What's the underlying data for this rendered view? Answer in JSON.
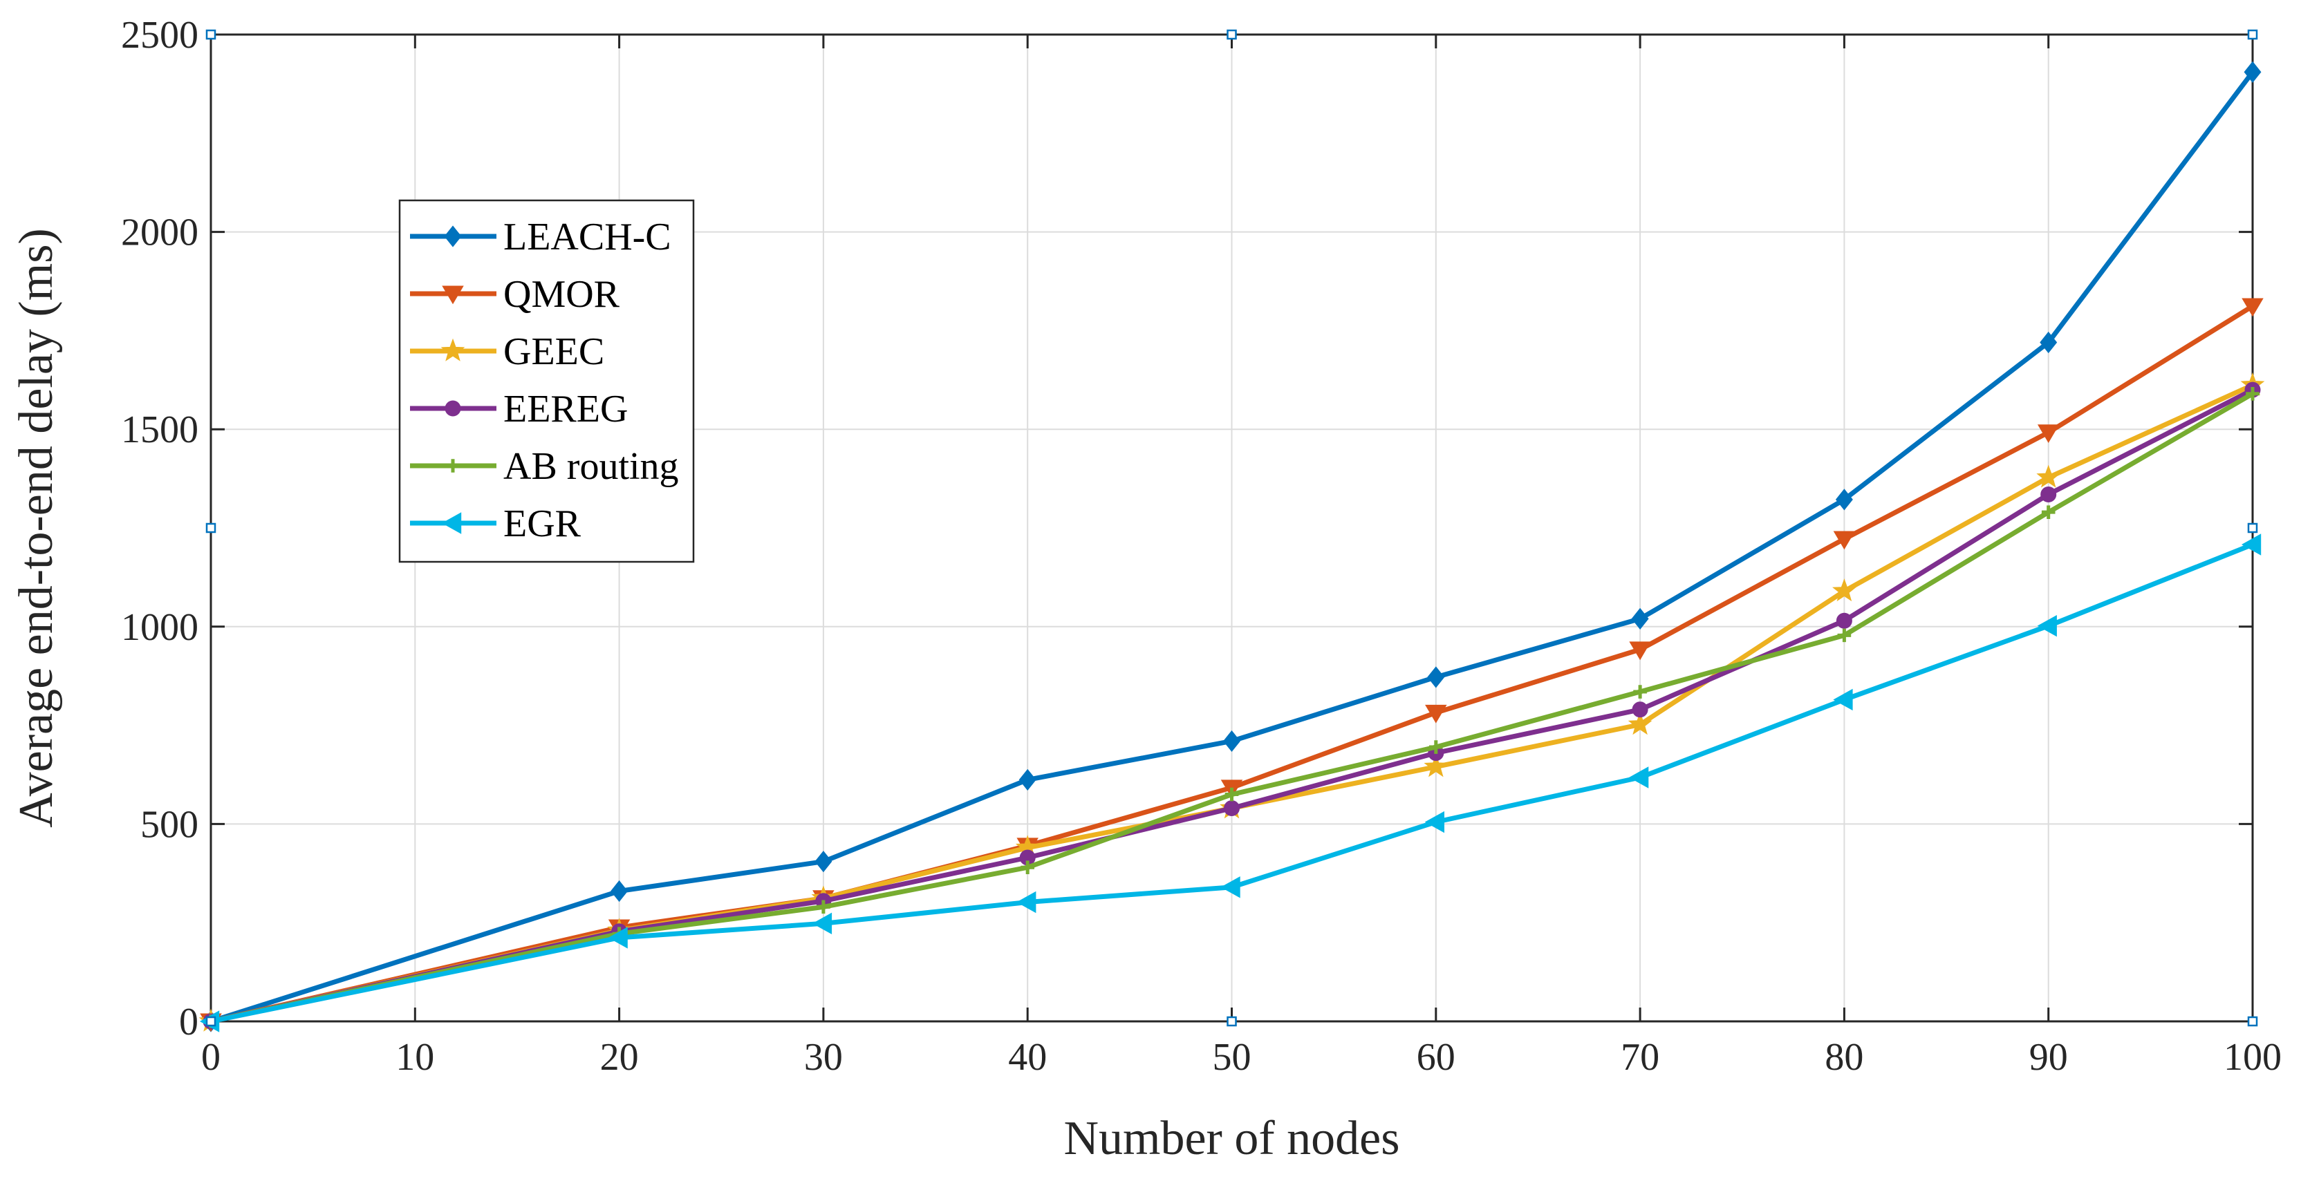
{
  "chart_data": {
    "type": "line",
    "title": "",
    "xlabel": "Number of nodes",
    "ylabel": "Average end-to-end delay (ms)",
    "xlim": [
      0,
      100
    ],
    "ylim": [
      0,
      2500
    ],
    "x_ticks": [
      "0",
      "10",
      "20",
      "30",
      "40",
      "50",
      "60",
      "70",
      "80",
      "90",
      "100"
    ],
    "y_ticks": [
      "0",
      "500",
      "1000",
      "1500",
      "2000",
      "2500"
    ],
    "grid": true,
    "legend_position": "upper-left",
    "x": [
      0,
      20,
      30,
      40,
      50,
      60,
      70,
      80,
      90,
      100
    ],
    "series": [
      {
        "name": "LEACH-C",
        "color": "#0072BD",
        "marker": "diamond",
        "values": [
          0,
          330,
          405,
          612,
          710,
          872,
          1020,
          1322,
          1720,
          2405
        ]
      },
      {
        "name": "QMOR",
        "color": "#D95319",
        "marker": "triangle-down",
        "values": [
          0,
          238,
          312,
          445,
          592,
          782,
          942,
          1222,
          1492,
          1812
        ]
      },
      {
        "name": "GEEC",
        "color": "#EDB120",
        "marker": "star",
        "values": [
          0,
          230,
          312,
          440,
          540,
          645,
          752,
          1090,
          1378,
          1612
        ]
      },
      {
        "name": "EEREG",
        "color": "#7E2F8E",
        "marker": "circle",
        "values": [
          0,
          228,
          305,
          415,
          540,
          680,
          790,
          1015,
          1335,
          1600
        ]
      },
      {
        "name": "AB routing",
        "color": "#77AC30",
        "marker": "plus",
        "values": [
          0,
          222,
          290,
          390,
          575,
          695,
          835,
          978,
          1290,
          1590
        ]
      },
      {
        "name": "EGR",
        "color": "#00B6E6",
        "marker": "triangle-left",
        "values": [
          0,
          212,
          248,
          302,
          340,
          505,
          618,
          815,
          1002,
          1208
        ]
      }
    ]
  }
}
